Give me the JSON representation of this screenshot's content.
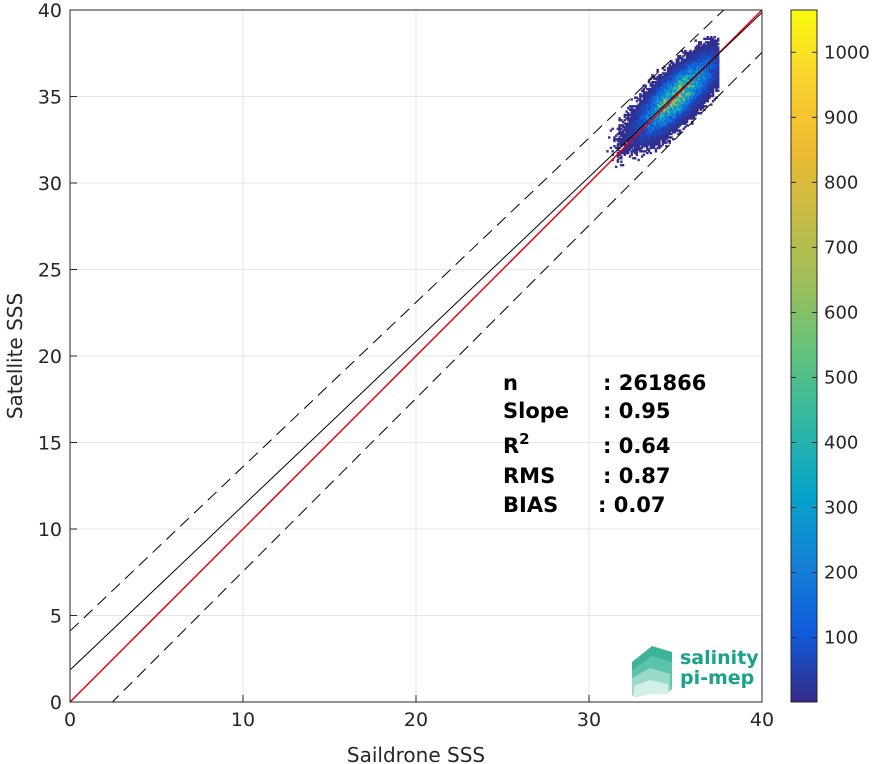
{
  "chart_data": {
    "type": "heatmap",
    "xlabel": "Saildrone SSS",
    "ylabel": "Satellite SSS",
    "xlim": [
      0,
      40
    ],
    "ylim": [
      0,
      40
    ],
    "xticks": [
      0,
      10,
      20,
      30,
      40
    ],
    "yticks": [
      0,
      5,
      10,
      15,
      20,
      25,
      30,
      35,
      40
    ],
    "grid": true,
    "colorbar": {
      "range": [
        1,
        1065
      ],
      "ticks": [
        100,
        200,
        300,
        400,
        500,
        600,
        700,
        800,
        900,
        1000
      ],
      "colormap": "parula"
    },
    "density_cluster": {
      "peak": [
        35.0,
        35.0
      ],
      "x_range": [
        30.5,
        37.5
      ],
      "y_range": [
        28.5,
        38.5
      ],
      "peak_count": 1065
    },
    "lines": [
      {
        "kind": "identity",
        "color": "#e8000b",
        "x": [
          0,
          40
        ],
        "y": [
          0,
          40
        ]
      },
      {
        "kind": "fit",
        "color": "#000000",
        "x": [
          0,
          40
        ],
        "y": [
          1.85,
          39.85
        ]
      },
      {
        "kind": "upper-bound",
        "style": "dashed",
        "color": "#000000",
        "x": [
          0,
          40
        ],
        "y": [
          4.1,
          42.1
        ]
      },
      {
        "kind": "lower-bound",
        "style": "dashed",
        "color": "#000000",
        "x": [
          0,
          40
        ],
        "y": [
          -2.45,
          37.55
        ]
      }
    ],
    "stats": [
      {
        "label": "n",
        "value": ": 261866"
      },
      {
        "label": "Slope",
        "value": ": 0.95"
      },
      {
        "label": "R",
        "sup": "2",
        "value": ": 0.64"
      },
      {
        "label": "RMS",
        "value": ": 0.87"
      },
      {
        "label": "BIAS",
        "value": ": 0.07"
      }
    ]
  },
  "logo": {
    "line1": "salinity",
    "line2": "pi-mep"
  },
  "colors": {
    "identity_line": "#e8000b",
    "logo_text": "#1aa38a"
  }
}
